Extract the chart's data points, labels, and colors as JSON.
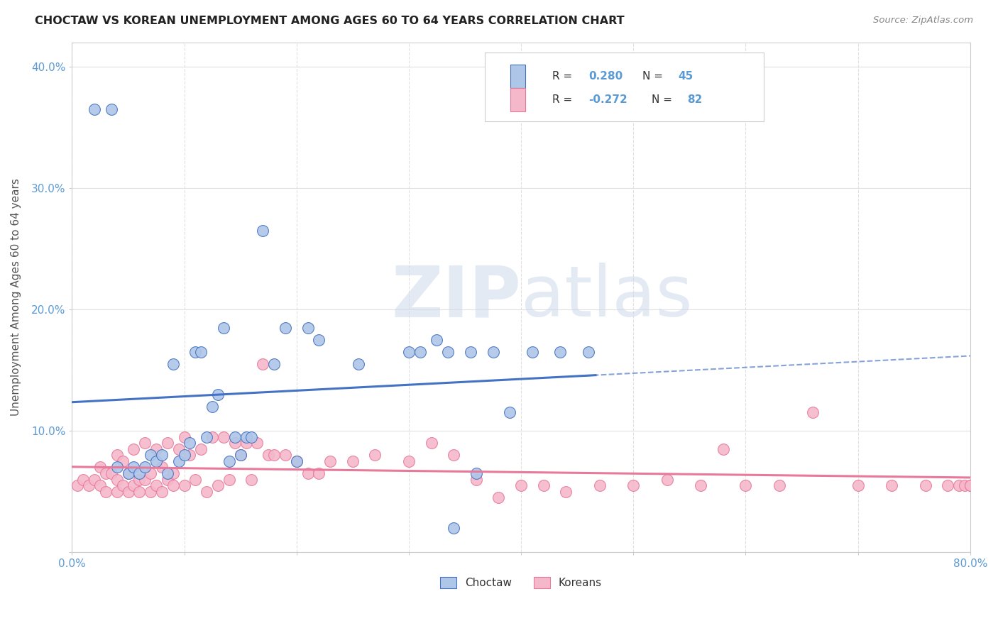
{
  "title": "CHOCTAW VS KOREAN UNEMPLOYMENT AMONG AGES 60 TO 64 YEARS CORRELATION CHART",
  "source": "Source: ZipAtlas.com",
  "ylabel": "Unemployment Among Ages 60 to 64 years",
  "xlim": [
    0.0,
    0.8
  ],
  "ylim": [
    0.0,
    0.42
  ],
  "x_ticks": [
    0.0,
    0.1,
    0.2,
    0.3,
    0.4,
    0.5,
    0.6,
    0.7,
    0.8
  ],
  "x_tick_labels": [
    "0.0%",
    "",
    "",
    "",
    "",
    "",
    "",
    "",
    "80.0%"
  ],
  "y_ticks": [
    0.0,
    0.1,
    0.2,
    0.3,
    0.4
  ],
  "y_tick_labels": [
    "",
    "10.0%",
    "20.0%",
    "30.0%",
    "40.0%"
  ],
  "choctaw_color": "#aec6e8",
  "korean_color": "#f5b8cb",
  "choctaw_edge_color": "#4472c4",
  "korean_edge_color": "#e8799a",
  "choctaw_line_color": "#4472c4",
  "korean_line_color": "#e8799a",
  "choctaw_R": 0.28,
  "choctaw_N": 45,
  "korean_R": -0.272,
  "korean_N": 82,
  "watermark_zip": "ZIP",
  "watermark_atlas": "atlas",
  "background_color": "#ffffff",
  "grid_color": "#e0e0e0",
  "choctaw_scatter_x": [
    0.02,
    0.035,
    0.04,
    0.05,
    0.055,
    0.06,
    0.065,
    0.07,
    0.075,
    0.08,
    0.085,
    0.09,
    0.095,
    0.1,
    0.105,
    0.11,
    0.115,
    0.12,
    0.125,
    0.13,
    0.135,
    0.14,
    0.145,
    0.15,
    0.155,
    0.16,
    0.17,
    0.18,
    0.19,
    0.2,
    0.21,
    0.22,
    0.255,
    0.3,
    0.31,
    0.325,
    0.335,
    0.34,
    0.355,
    0.36,
    0.375,
    0.39,
    0.41,
    0.435,
    0.46
  ],
  "choctaw_scatter_y": [
    0.365,
    0.365,
    0.07,
    0.065,
    0.07,
    0.065,
    0.07,
    0.08,
    0.075,
    0.08,
    0.065,
    0.155,
    0.075,
    0.08,
    0.09,
    0.165,
    0.165,
    0.095,
    0.12,
    0.13,
    0.185,
    0.075,
    0.095,
    0.08,
    0.095,
    0.095,
    0.265,
    0.155,
    0.185,
    0.075,
    0.185,
    0.175,
    0.155,
    0.165,
    0.165,
    0.175,
    0.165,
    0.02,
    0.165,
    0.065,
    0.165,
    0.115,
    0.165,
    0.165,
    0.165
  ],
  "korean_scatter_x": [
    0.005,
    0.01,
    0.015,
    0.02,
    0.025,
    0.025,
    0.03,
    0.03,
    0.035,
    0.04,
    0.04,
    0.04,
    0.045,
    0.045,
    0.05,
    0.05,
    0.055,
    0.055,
    0.06,
    0.06,
    0.065,
    0.065,
    0.07,
    0.07,
    0.075,
    0.075,
    0.08,
    0.08,
    0.085,
    0.085,
    0.09,
    0.09,
    0.095,
    0.1,
    0.1,
    0.105,
    0.11,
    0.115,
    0.12,
    0.125,
    0.13,
    0.135,
    0.14,
    0.145,
    0.15,
    0.155,
    0.16,
    0.165,
    0.17,
    0.175,
    0.18,
    0.19,
    0.2,
    0.21,
    0.22,
    0.23,
    0.25,
    0.27,
    0.3,
    0.32,
    0.34,
    0.36,
    0.38,
    0.4,
    0.42,
    0.44,
    0.47,
    0.5,
    0.53,
    0.56,
    0.58,
    0.6,
    0.63,
    0.66,
    0.7,
    0.73,
    0.76,
    0.78,
    0.79,
    0.795,
    0.8,
    0.8
  ],
  "korean_scatter_y": [
    0.055,
    0.06,
    0.055,
    0.06,
    0.055,
    0.07,
    0.05,
    0.065,
    0.065,
    0.05,
    0.06,
    0.08,
    0.055,
    0.075,
    0.05,
    0.065,
    0.055,
    0.085,
    0.05,
    0.06,
    0.06,
    0.09,
    0.05,
    0.065,
    0.055,
    0.085,
    0.05,
    0.07,
    0.06,
    0.09,
    0.055,
    0.065,
    0.085,
    0.055,
    0.095,
    0.08,
    0.06,
    0.085,
    0.05,
    0.095,
    0.055,
    0.095,
    0.06,
    0.09,
    0.08,
    0.09,
    0.06,
    0.09,
    0.155,
    0.08,
    0.08,
    0.08,
    0.075,
    0.065,
    0.065,
    0.075,
    0.075,
    0.08,
    0.075,
    0.09,
    0.08,
    0.06,
    0.045,
    0.055,
    0.055,
    0.05,
    0.055,
    0.055,
    0.06,
    0.055,
    0.085,
    0.055,
    0.055,
    0.115,
    0.055,
    0.055,
    0.055,
    0.055,
    0.055,
    0.055,
    0.055,
    0.055
  ]
}
